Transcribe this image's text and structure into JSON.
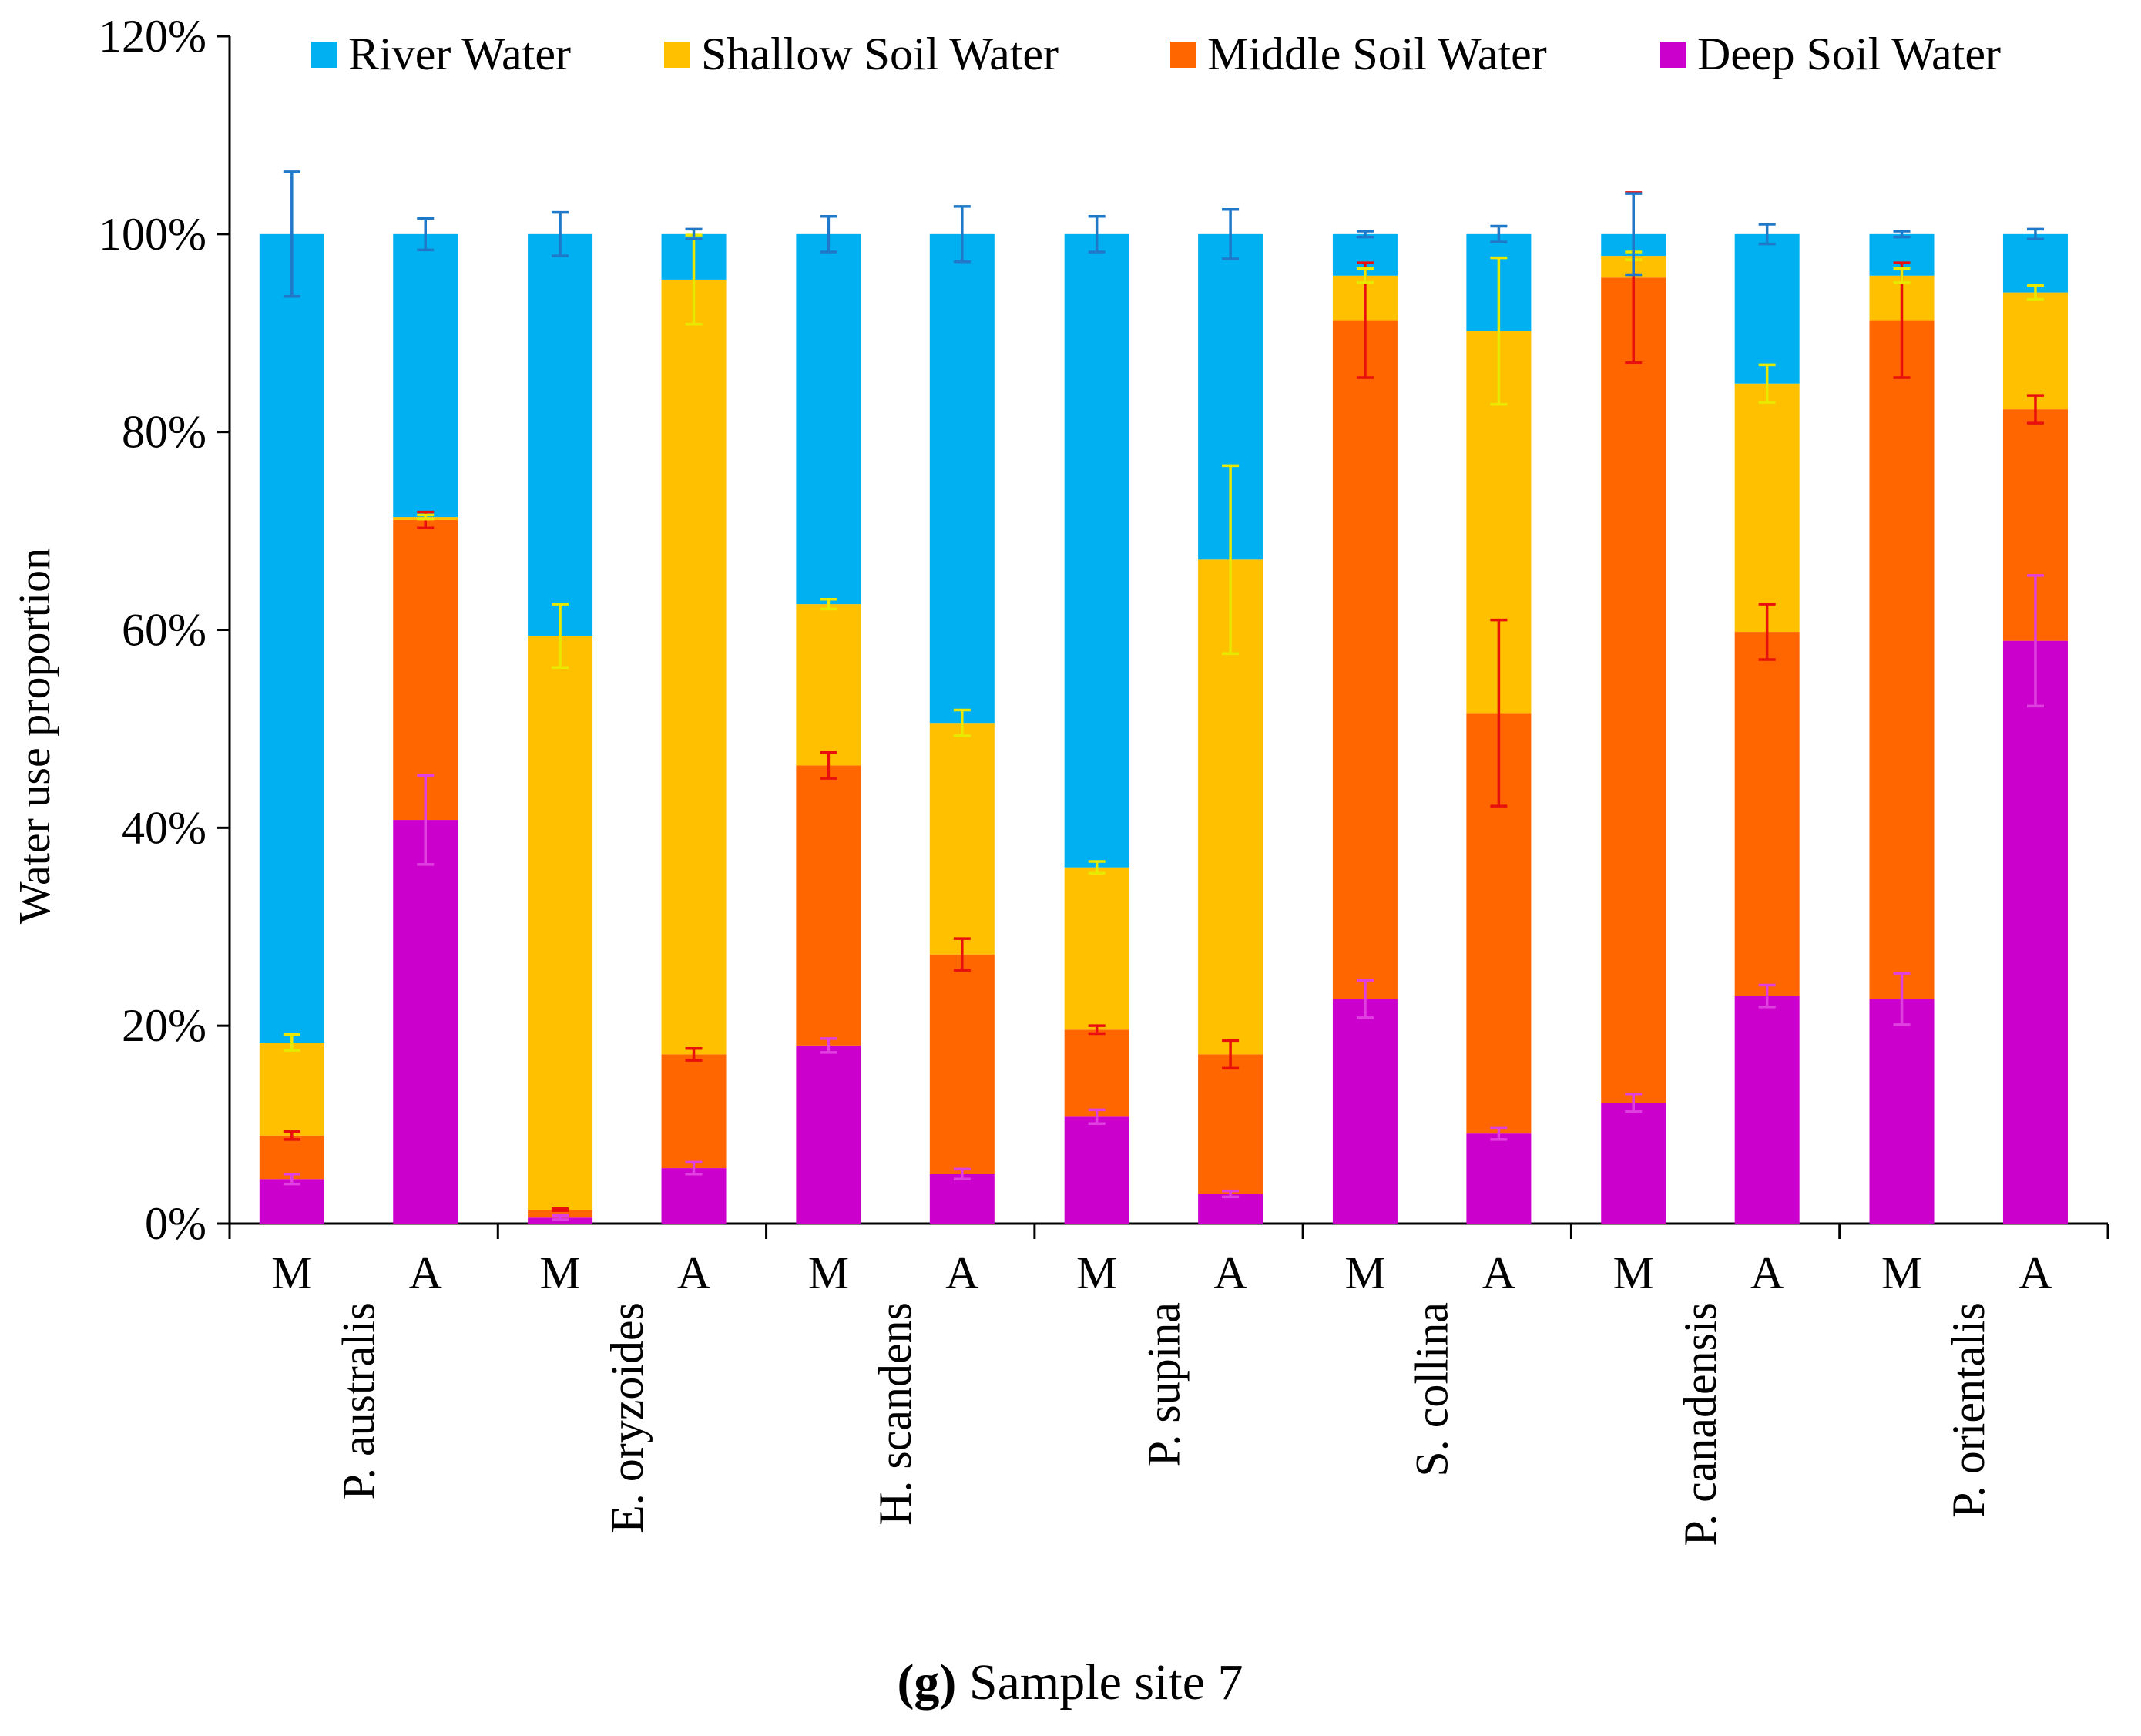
{
  "chart_data": {
    "type": "bar",
    "stacked": true,
    "title": "",
    "caption": {
      "letter": "(g)",
      "text": " Sample site 7"
    },
    "ylabel": "Water use proportion",
    "xlabel": "",
    "ylim": [
      0,
      120
    ],
    "y_ticks": [
      "0%",
      "20%",
      "40%",
      "60%",
      "80%",
      "100%",
      "120%"
    ],
    "legend_position": "top",
    "groups": [
      "P. australis",
      "E. oryzoides",
      "H. scandens",
      "P. supina",
      "S. collina",
      "P. canadensis",
      "P. orientalis"
    ],
    "bar_labels": [
      "M",
      "A"
    ],
    "series": [
      {
        "name": "Deep Soil Water",
        "color": "#cc00cc",
        "error_color": "#e040e0",
        "values": [
          4.5,
          40.8,
          0.6,
          5.6,
          18.0,
          5.0,
          10.8,
          3.0,
          22.7,
          9.1,
          12.2,
          23.0,
          22.7,
          58.9
        ],
        "errors": [
          0.5,
          4.5,
          0.2,
          0.6,
          0.7,
          0.5,
          0.7,
          0.3,
          1.9,
          0.6,
          0.9,
          1.1,
          2.6,
          6.6
        ]
      },
      {
        "name": "Middle Soil Water",
        "color": "#ff6600",
        "error_color": "#e8100c",
        "values": [
          4.4,
          30.3,
          0.8,
          11.5,
          28.3,
          22.2,
          8.8,
          14.1,
          68.6,
          42.5,
          83.4,
          36.8,
          68.6,
          23.4
        ],
        "errors": [
          0.4,
          0.8,
          0.1,
          0.6,
          1.3,
          1.6,
          0.4,
          1.4,
          5.8,
          9.4,
          8.6,
          2.8,
          5.8,
          1.4
        ]
      },
      {
        "name": "Shallow Soil Water",
        "color": "#ffc000",
        "error_color": "#e8e800",
        "values": [
          9.4,
          0.3,
          58.0,
          78.3,
          16.3,
          23.4,
          16.4,
          50.0,
          4.5,
          38.6,
          2.2,
          25.1,
          4.5,
          11.8
        ],
        "errors": [
          0.8,
          0.2,
          3.2,
          4.5,
          0.5,
          1.3,
          0.6,
          9.5,
          0.7,
          7.4,
          0.4,
          1.9,
          0.7,
          0.7
        ]
      },
      {
        "name": "River Water",
        "color": "#00b0f0",
        "error_color": "#1f78c8",
        "values": [
          81.7,
          28.6,
          40.6,
          4.6,
          37.4,
          49.4,
          64.0,
          32.9,
          4.2,
          9.8,
          2.2,
          15.1,
          4.2,
          5.9
        ],
        "errors": [
          6.3,
          1.6,
          2.2,
          0.5,
          1.8,
          2.8,
          1.8,
          2.5,
          0.3,
          0.8,
          4.1,
          1.0,
          0.3,
          0.5
        ]
      }
    ]
  }
}
